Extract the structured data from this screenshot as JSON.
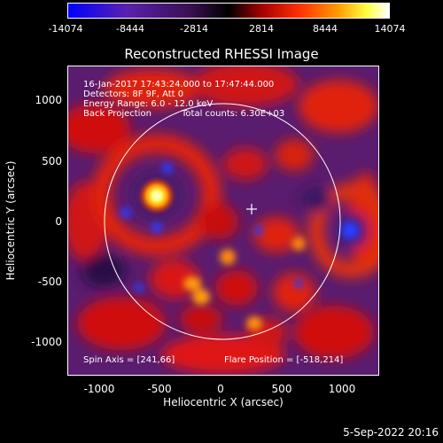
{
  "colorbar": {
    "ticks": [
      "-14074",
      "-8444",
      "-2814",
      "2814",
      "8444",
      "14074"
    ]
  },
  "title": "Reconstructed RHESSI Image",
  "annotations": {
    "time_range": "16-Jan-2017 17:43:24.000 to 17:47:44.000",
    "detectors": "Detectors: 8F 9F, Att 0",
    "energy": "Energy Range: 6.0 - 12.0 keV",
    "method": "Back Projection",
    "counts": "Total counts: 6.30E+03",
    "spin_axis": "Spin Axis = [241,66]",
    "flare_position": "Flare Position = [-518,214]"
  },
  "axes": {
    "xlabel": "Heliocentric X (arcsec)",
    "ylabel": "Heliocentric Y (arcsec)",
    "xticks": [
      "-1000",
      "-500",
      "0",
      "500",
      "1000"
    ],
    "yticks": [
      "1000",
      "500",
      "0",
      "-500",
      "-1000"
    ]
  },
  "timestamp": "5-Sep-2022 20:16",
  "colors": {
    "colorbar_low": "#0000ff",
    "colorbar_mid": "#000000",
    "colorbar_high": "#ffffff",
    "limb_circle": "#ffffff"
  }
}
